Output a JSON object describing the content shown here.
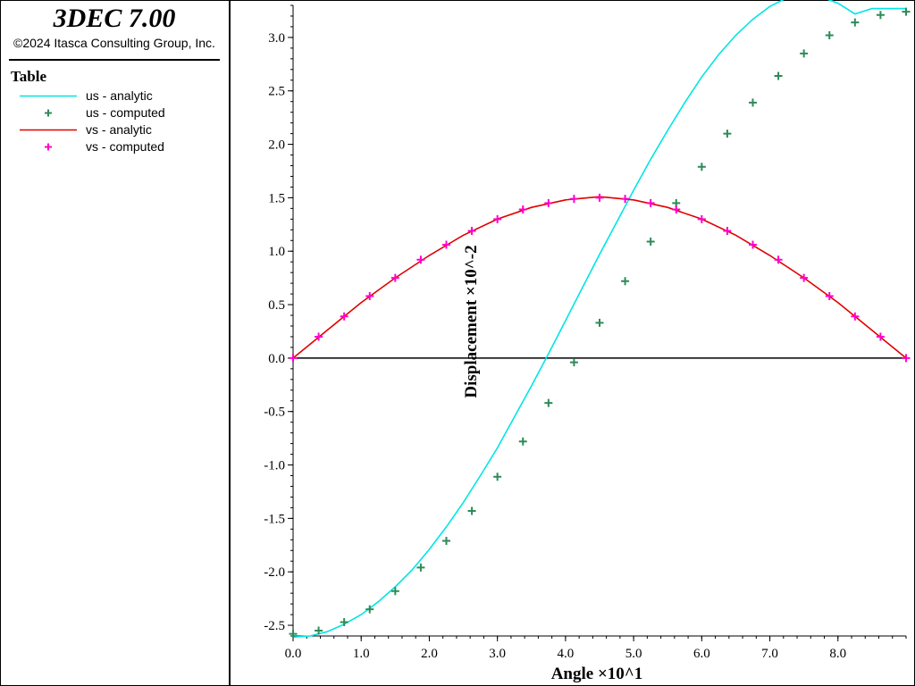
{
  "app": {
    "title": "3DEC 7.00",
    "copyright": "©2024 Itasca Consulting Group, Inc."
  },
  "legend": {
    "title": "Table",
    "items": [
      {
        "label": "us - analytic",
        "kind": "line",
        "color": "#00e5e5"
      },
      {
        "label": "us - computed",
        "kind": "marker",
        "color": "#2e8b57"
      },
      {
        "label": "vs - analytic",
        "kind": "line",
        "color": "#e00000"
      },
      {
        "label": "vs - computed",
        "kind": "marker",
        "color": "#ff00cc"
      }
    ]
  },
  "chart_data": {
    "type": "line",
    "xlabel": "Angle ×10^1",
    "ylabel": "Displacement ×10^-2",
    "xlim": [
      0,
      9
    ],
    "ylim": [
      -2.6,
      3.3
    ],
    "xticks": [
      0,
      1,
      2,
      3,
      4,
      5,
      6,
      7,
      8
    ],
    "xtick_labels": [
      "0.0",
      "1.0",
      "2.0",
      "3.0",
      "4.0",
      "5.0",
      "6.0",
      "7.0",
      "8.0"
    ],
    "yticks": [
      -2.5,
      -2.0,
      -1.5,
      -1.0,
      -0.5,
      0.0,
      0.5,
      1.0,
      1.5,
      2.0,
      2.5,
      3.0
    ],
    "ytick_labels": [
      "-2.5",
      "-2.0",
      "-1.5",
      "-1.0",
      "-0.5",
      "0.0",
      "0.5",
      "1.0",
      "1.5",
      "2.0",
      "2.5",
      "3.0"
    ],
    "zero_line": true,
    "legend_position": "left panel",
    "series": [
      {
        "name": "us - analytic",
        "style": "line",
        "color": "#00e5e5",
        "x": [
          0,
          0.25,
          0.5,
          0.75,
          1,
          1.25,
          1.5,
          1.75,
          2,
          2.25,
          2.5,
          2.75,
          3,
          3.25,
          3.5,
          3.75,
          4,
          4.25,
          4.5,
          4.75,
          5,
          5.25,
          5.5,
          5.75,
          6,
          6.25,
          6.5,
          6.75,
          7,
          7.25,
          7.5,
          7.75,
          8,
          8.25,
          8.5,
          8.75,
          9
        ],
        "y": [
          -2.61,
          -2.6,
          -2.56,
          -2.49,
          -2.4,
          -2.28,
          -2.14,
          -1.98,
          -1.79,
          -1.58,
          -1.35,
          -1.1,
          -0.84,
          -0.55,
          -0.26,
          0.04,
          0.35,
          0.66,
          0.97,
          1.27,
          1.57,
          1.86,
          2.13,
          2.39,
          2.63,
          2.84,
          3.02,
          3.17,
          3.29,
          3.37,
          3.4,
          3.38,
          3.32,
          3.22,
          3.27,
          3.27,
          3.27
        ]
      },
      {
        "name": "us - computed",
        "style": "marker",
        "color": "#2e8b57",
        "x": [
          0,
          0.375,
          0.75,
          1.125,
          1.5,
          1.875,
          2.25,
          2.625,
          3.0,
          3.375,
          3.75,
          4.125,
          4.5,
          4.875,
          5.25,
          5.625,
          6.0,
          6.375,
          6.75,
          7.125,
          7.5,
          7.875,
          8.25,
          8.625,
          9.0
        ],
        "y": [
          -2.58,
          -2.55,
          -2.47,
          -2.35,
          -2.18,
          -1.96,
          -1.71,
          -1.43,
          -1.11,
          -0.78,
          -0.42,
          -0.04,
          0.33,
          0.72,
          1.09,
          1.45,
          1.79,
          2.1,
          2.39,
          2.64,
          2.85,
          3.02,
          3.14,
          3.21,
          3.24
        ]
      },
      {
        "name": "vs - analytic",
        "style": "line",
        "color": "#e00000",
        "x": [
          0,
          0.5,
          1,
          1.5,
          2,
          2.5,
          3,
          3.5,
          4,
          4.5,
          5,
          5.5,
          6,
          6.5,
          7,
          7.5,
          8,
          8.5,
          9
        ],
        "y": [
          0.0,
          0.26,
          0.52,
          0.75,
          0.96,
          1.15,
          1.3,
          1.41,
          1.48,
          1.51,
          1.48,
          1.41,
          1.3,
          1.15,
          0.96,
          0.75,
          0.52,
          0.26,
          0.0
        ]
      },
      {
        "name": "vs - computed",
        "style": "marker",
        "color": "#ff00cc",
        "x": [
          0,
          0.375,
          0.75,
          1.125,
          1.5,
          1.875,
          2.25,
          2.625,
          3.0,
          3.375,
          3.75,
          4.125,
          4.5,
          4.875,
          5.25,
          5.625,
          6.0,
          6.375,
          6.75,
          7.125,
          7.5,
          7.875,
          8.25,
          8.625,
          9.0
        ],
        "y": [
          0.0,
          0.2,
          0.39,
          0.58,
          0.75,
          0.92,
          1.06,
          1.19,
          1.3,
          1.39,
          1.45,
          1.49,
          1.5,
          1.49,
          1.45,
          1.39,
          1.3,
          1.19,
          1.06,
          0.92,
          0.75,
          0.58,
          0.39,
          0.2,
          0.0
        ]
      }
    ]
  }
}
